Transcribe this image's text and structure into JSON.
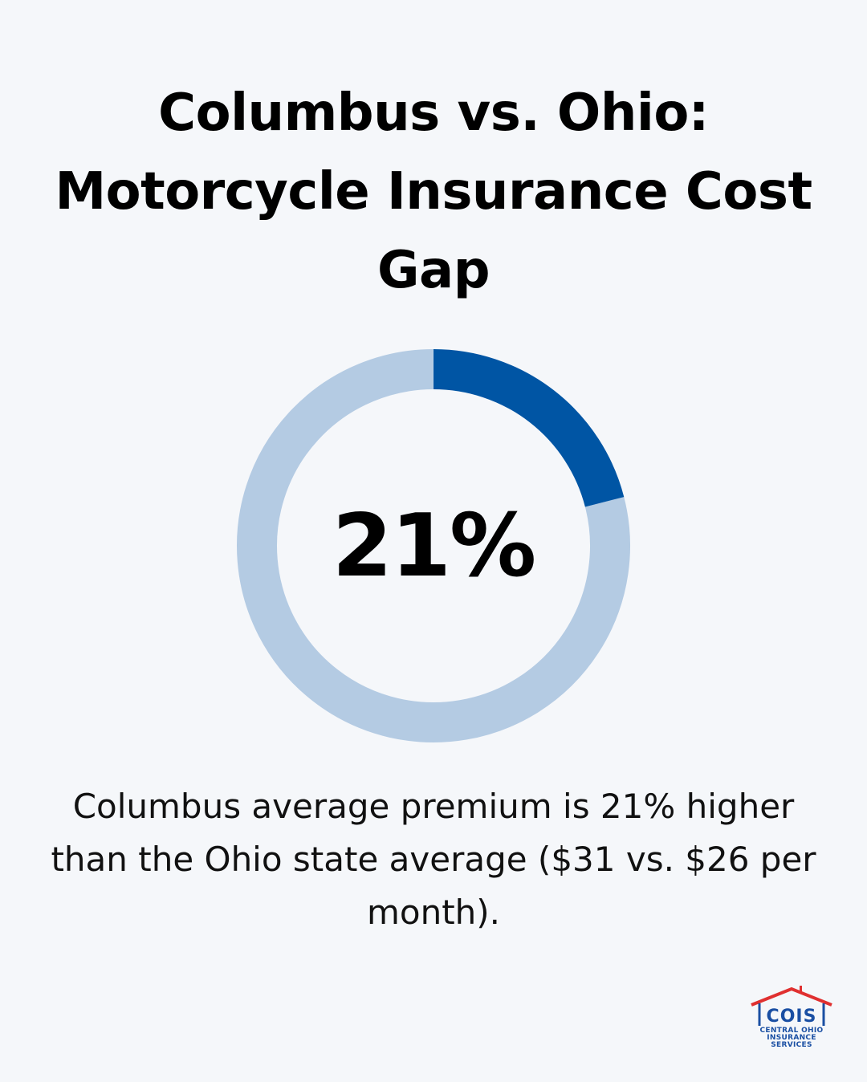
{
  "title": {
    "line1": "Columbus vs. Ohio:",
    "line2": "Motorcycle Insurance Cost",
    "line3": "Gap"
  },
  "chart_data": {
    "type": "pie",
    "style": "donut",
    "center_label": "21%",
    "series": [
      {
        "values": [
          21,
          79
        ]
      }
    ],
    "colors": {
      "highlight": "#0055a4",
      "remainder": "#b4cbe3"
    }
  },
  "description": {
    "line1": "Columbus average premium is 21% higher",
    "line2": "than the Ohio state average ($31 vs. $26 per",
    "line3": "month)."
  },
  "logo": {
    "abbr": "COIS",
    "line1": "CENTRAL OHIO",
    "line2": "INSURANCE",
    "line3": "SERVICES",
    "roof_color": "#e03030",
    "text_color": "#1a4fa3"
  }
}
